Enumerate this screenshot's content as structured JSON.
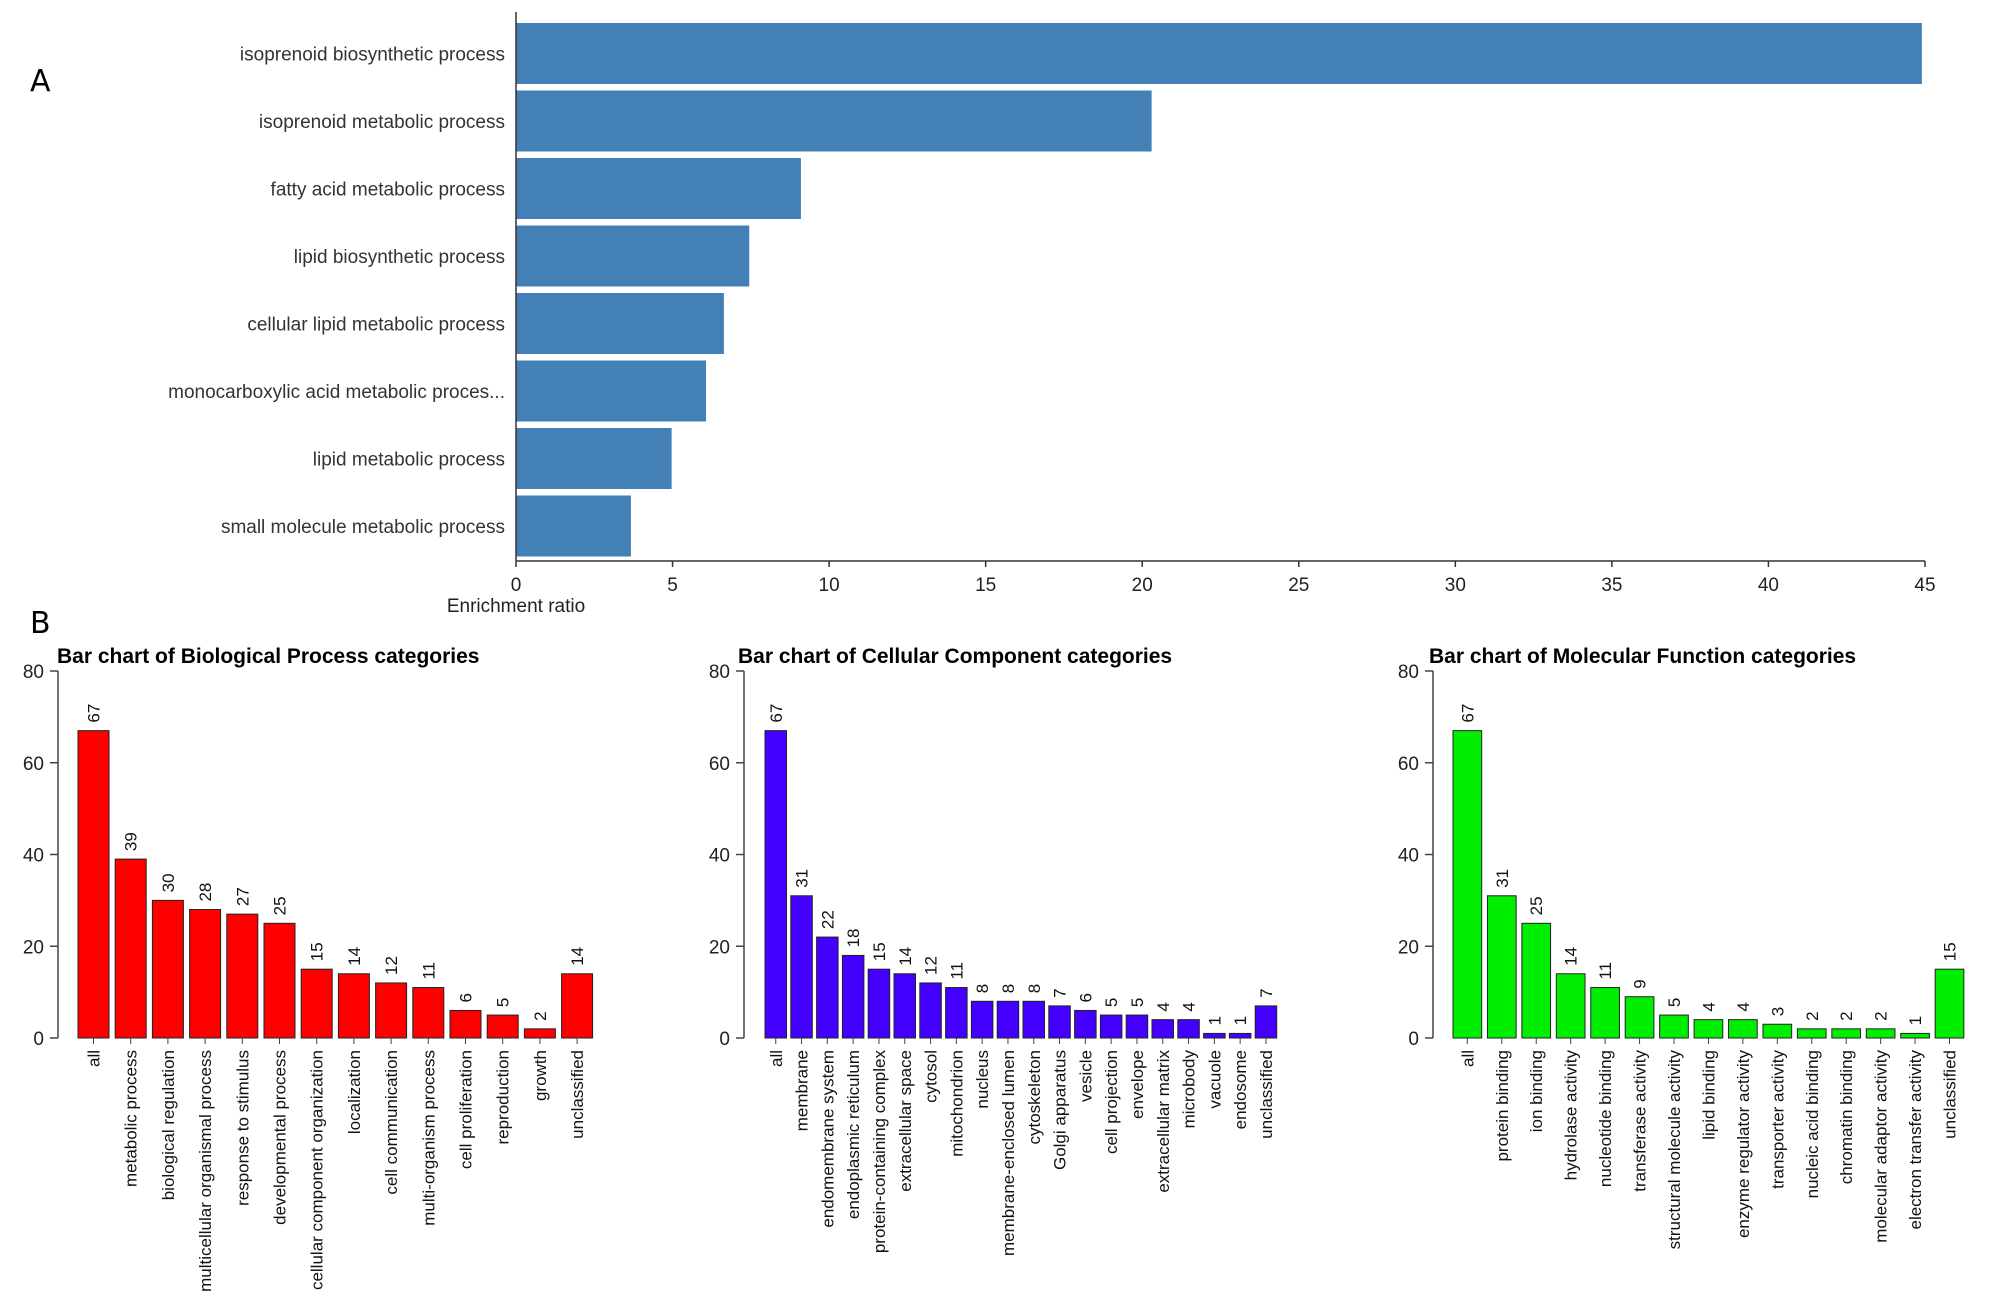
{
  "panel_labels": {
    "a": "A",
    "b": "B"
  },
  "chart_data": [
    {
      "type": "bar",
      "orientation": "horizontal",
      "panel": "A",
      "title": "",
      "xlabel": "Enrichment ratio",
      "ylabel": "",
      "xlim": [
        0,
        45
      ],
      "xticks": [
        0,
        5,
        10,
        15,
        20,
        25,
        30,
        35,
        40,
        45
      ],
      "grid": false,
      "color": "#4380b5",
      "categories": [
        "isoprenoid biosynthetic process",
        "isoprenoid metabolic process",
        "fatty acid metabolic process",
        "lipid biosynthetic process",
        "cellular lipid metabolic process",
        "monocarboxylic acid metabolic proces...",
        "lipid metabolic process",
        "small molecule metabolic process"
      ],
      "values": [
        44.9,
        20.3,
        9.1,
        7.45,
        6.64,
        6.07,
        4.97,
        3.67
      ]
    },
    {
      "type": "bar",
      "panel": "B",
      "title": "Bar chart of Biological Process categories",
      "ylim": [
        0,
        80
      ],
      "yticks": [
        0,
        20,
        40,
        60,
        80
      ],
      "grid": false,
      "color": "#ff0000",
      "categories": [
        "all",
        "metabolic process",
        "biological regulation",
        "multicellular organismal process",
        "response to stimulus",
        "developmental process",
        "cellular component organization",
        "localization",
        "cell communication",
        "multi-organism process",
        "cell proliferation",
        "reproduction",
        "growth",
        "unclassified"
      ],
      "values": [
        67,
        39,
        30,
        28,
        27,
        25,
        15,
        14,
        12,
        11,
        6,
        5,
        2,
        14
      ]
    },
    {
      "type": "bar",
      "panel": "B",
      "title": "Bar chart of Cellular Component categories",
      "ylim": [
        0,
        80
      ],
      "yticks": [
        0,
        20,
        40,
        60,
        80
      ],
      "grid": false,
      "color": "#4400ff",
      "categories": [
        "all",
        "membrane",
        "endomembrane system",
        "endoplasmic reticulum",
        "protein-containing complex",
        "extracellular space",
        "cytosol",
        "mitochondrion",
        "nucleus",
        "membrane-enclosed lumen",
        "cytoskeleton",
        "Golgi apparatus",
        "vesicle",
        "cell projection",
        "envelope",
        "extracellular matrix",
        "microbody",
        "vacuole",
        "endosome",
        "unclassified"
      ],
      "values": [
        67,
        31,
        22,
        18,
        15,
        14,
        12,
        11,
        8,
        8,
        8,
        7,
        6,
        5,
        5,
        4,
        4,
        1,
        1,
        7
      ]
    },
    {
      "type": "bar",
      "panel": "B",
      "title": "Bar chart of Molecular Function categories",
      "ylim": [
        0,
        80
      ],
      "yticks": [
        0,
        20,
        40,
        60,
        80
      ],
      "grid": false,
      "color": "#00ee00",
      "categories": [
        "all",
        "protein binding",
        "ion binding",
        "hydrolase activity",
        "nucleotide binding",
        "transferase activity",
        "structural molecule activity",
        "lipid binding",
        "enzyme regulator activity",
        "transporter activity",
        "nucleic acid binding",
        "chromatin binding",
        "molecular adaptor activity",
        "electron transfer activity",
        "unclassified"
      ],
      "values": [
        67,
        31,
        25,
        14,
        11,
        9,
        5,
        4,
        4,
        3,
        2,
        2,
        2,
        1,
        15
      ]
    }
  ]
}
